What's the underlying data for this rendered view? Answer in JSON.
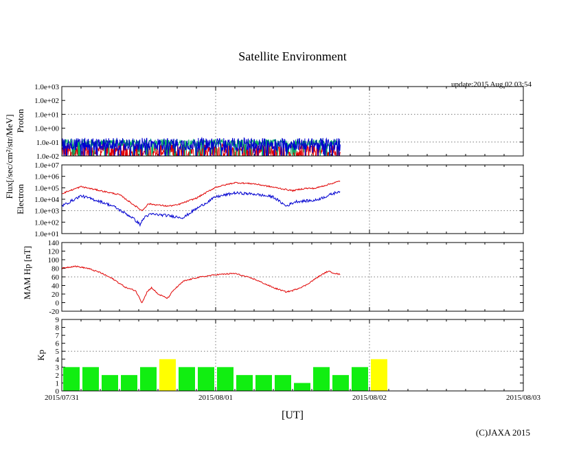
{
  "chart_data": {
    "title": "Satellite Environment",
    "update": "update:2015 Aug 02 03:54",
    "copyright": "(C)JAXA 2015",
    "xlabel": "[UT]",
    "x_ticks": [
      "2015/07/31",
      "2015/08/01",
      "2015/08/02",
      "2015/08/03"
    ],
    "x_range_hours": [
      0,
      72
    ],
    "flux_label": "Flux[/sec/cm²/str/MeV]",
    "colors": {
      "red": "#e00000",
      "blue": "#0000d0",
      "green": "#00b060",
      "kp_green": "#11ee11",
      "kp_yellow": "#ffff00"
    },
    "panels": [
      {
        "type": "line",
        "name": "proton",
        "ylabel": "Proton",
        "yscale": "log",
        "ylim": [
          -2,
          3
        ],
        "y_ticks": [
          "1.0e+03",
          "1.0e+02",
          "1.0e+01",
          "1.0e+00",
          "1.0e-01",
          "1.0e-02"
        ],
        "grid_y": [
          "1.0e+01",
          "1.0e-01"
        ],
        "series": [
          {
            "name": "proton-low",
            "color": "red",
            "noise": "spiky",
            "x": [
              0,
              43.5
            ],
            "y": [
              -1.6,
              -1.6
            ],
            "jitter": 0.5
          },
          {
            "name": "proton-mid",
            "color": "green",
            "noise": "spiky",
            "x": [
              0,
              43.5
            ],
            "y": [
              -1.05,
              -1.05
            ],
            "jitter": 0.25
          },
          {
            "name": "proton-high",
            "color": "blue",
            "noise": "spiky",
            "x": [
              0,
              43.5
            ],
            "y": [
              -1.15,
              -1.15
            ],
            "jitter": 0.45
          }
        ]
      },
      {
        "type": "line",
        "name": "electron",
        "ylabel": "Electron",
        "yscale": "log",
        "ylim": [
          1,
          7
        ],
        "y_ticks": [
          "1.0e+07",
          "1.0e+06",
          "1.0e+05",
          "1.0e+04",
          "1.0e+03",
          "1.0e+02",
          "1.0e+01"
        ],
        "grid_y": [
          "1.0e+03"
        ],
        "series": [
          {
            "name": "electron-low",
            "color": "red",
            "x": [
              0,
              3,
              6,
              9,
              11,
              12.5,
              13.5,
              15,
              16.5,
              18,
              21,
              24,
              27,
              30,
              33,
              36,
              38,
              39.5,
              41,
              43.5
            ],
            "y": [
              4.5,
              5.1,
              4.75,
              4.4,
              3.6,
              3.0,
              3.6,
              3.5,
              3.4,
              3.5,
              4.1,
              5.05,
              5.45,
              5.35,
              5.05,
              4.75,
              4.95,
              4.95,
              5.2,
              5.6
            ],
            "jitter": 0.06
          },
          {
            "name": "electron-high",
            "color": "blue",
            "x": [
              0,
              3,
              6,
              8,
              11,
              12.2,
              13,
              14,
              16,
              19,
              20.5,
              24,
              27,
              30,
              33,
              35,
              36.5,
              39.5,
              41,
              43.5
            ],
            "y": [
              3.4,
              4.3,
              3.8,
              3.4,
              2.4,
              1.8,
              2.5,
              2.7,
              2.6,
              2.4,
              3.0,
              4.2,
              4.55,
              4.45,
              4.2,
              3.4,
              3.8,
              3.9,
              4.2,
              4.75
            ],
            "jitter": 0.12
          }
        ]
      },
      {
        "type": "line",
        "name": "mam-hp",
        "ylabel": "MAM Hp [nT]",
        "yscale": "linear",
        "ylim": [
          -20,
          140
        ],
        "y_ticks": [
          "140",
          "120",
          "100",
          "80",
          "60",
          "40",
          "20",
          "0",
          "-20"
        ],
        "grid_y": [
          "60"
        ],
        "series": [
          {
            "name": "hp",
            "color": "red",
            "x": [
              0,
              2,
              4,
              6,
              8,
              10,
              11.5,
              12.5,
              13.3,
              14,
              15,
              16.5,
              17.5,
              19,
              21,
              24,
              27,
              30,
              33,
              35,
              36,
              38,
              40,
              41.5,
              43.5
            ],
            "y": [
              80,
              85,
              80,
              70,
              55,
              35,
              28,
              0,
              25,
              35,
              20,
              10,
              30,
              50,
              58,
              65,
              68,
              55,
              35,
              25,
              28,
              40,
              60,
              73,
              65
            ],
            "jitter": 1.5
          }
        ]
      },
      {
        "type": "bar",
        "name": "kp",
        "ylabel": "Kp",
        "yscale": "linear",
        "ylim": [
          0,
          9
        ],
        "y_ticks": [
          "9",
          "8",
          "7",
          "6",
          "5",
          "4",
          "3",
          "2",
          "1",
          "0"
        ],
        "grid_y": [
          "5"
        ],
        "bar_width_hours": 3,
        "values": [
          3,
          3,
          2,
          2,
          3,
          4,
          3,
          3,
          3,
          2,
          2,
          2,
          1,
          3,
          2,
          3,
          4
        ],
        "bar_colors": [
          "kp_green",
          "kp_green",
          "kp_green",
          "kp_green",
          "kp_green",
          "kp_yellow",
          "kp_green",
          "kp_green",
          "kp_green",
          "kp_green",
          "kp_green",
          "kp_green",
          "kp_green",
          "kp_green",
          "kp_green",
          "kp_green",
          "kp_yellow"
        ]
      }
    ]
  }
}
